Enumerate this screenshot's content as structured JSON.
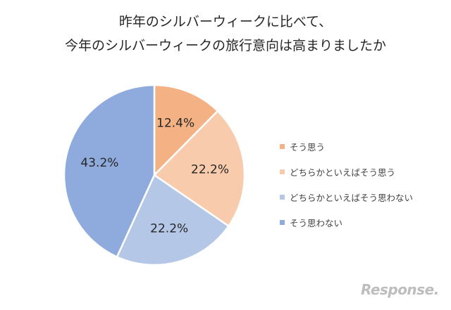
{
  "chart_data": {
    "type": "pie",
    "title_lines": [
      "昨年のシルバーウィークに比べて、",
      "今年のシルバーウィークの旅行意向は高まりましたか"
    ],
    "slices": [
      {
        "label": "そう思う",
        "value": 12.4,
        "value_label": "12.4%",
        "color": "#f4b183"
      },
      {
        "label": "どちらかといえばそう思う",
        "value": 22.2,
        "value_label": "22.2%",
        "color": "#f8cbad"
      },
      {
        "label": "どちらかといえばそう思わない",
        "value": 22.2,
        "value_label": "22.2%",
        "color": "#b4c7e7"
      },
      {
        "label": "そう思わない",
        "value": 43.2,
        "value_label": "43.2%",
        "color": "#8faadc"
      }
    ],
    "start": "12 o'clock",
    "direction": "clockwise",
    "legend_position": "right"
  },
  "watermark": "Response."
}
